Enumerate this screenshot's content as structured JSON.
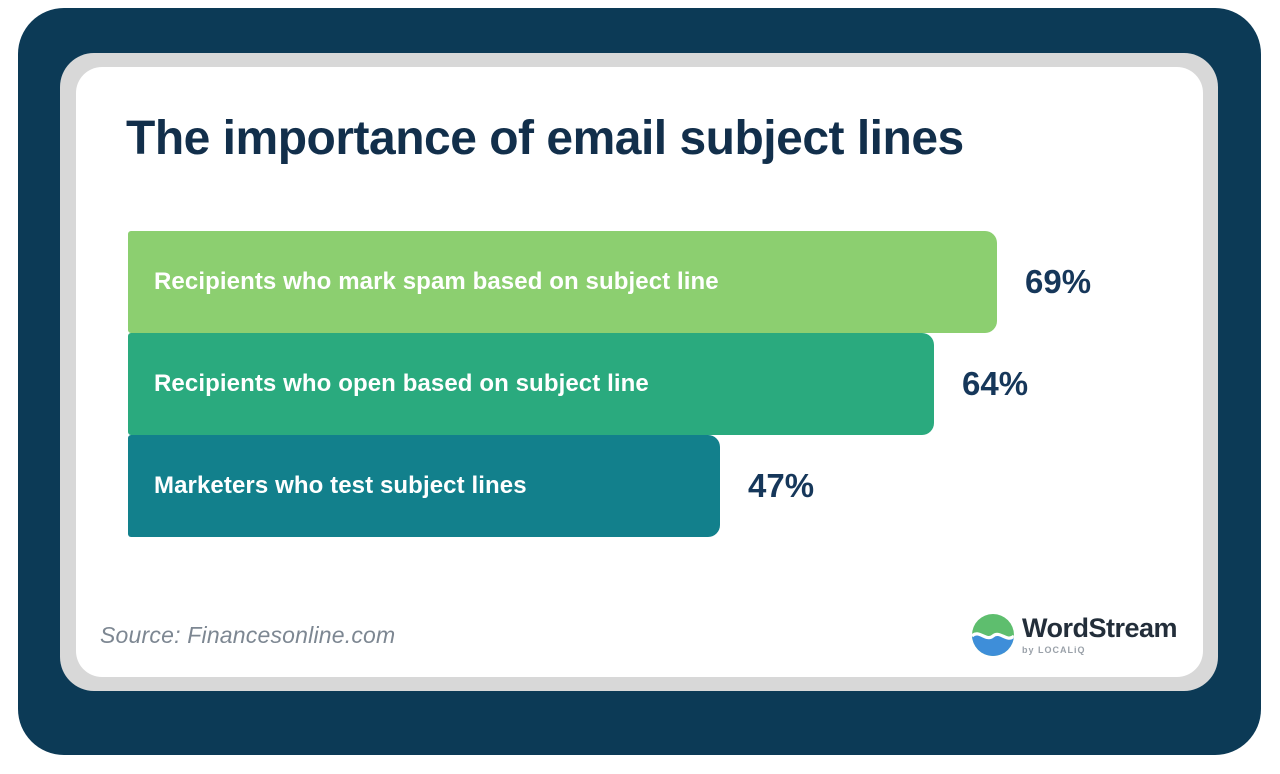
{
  "page": {
    "background": "#FFFFFF"
  },
  "frame": {
    "outer_color": "#0C3A56",
    "inner_color": "#D8D8D8",
    "card_color": "#FFFFFF"
  },
  "chart_data": {
    "type": "bar",
    "orientation": "horizontal",
    "title": "The importance of email subject lines",
    "categories": [
      "Recipients who mark spam based on subject line",
      "Recipients who open based on subject line",
      "Marketers who test subject lines"
    ],
    "values": [
      69,
      64,
      47
    ],
    "value_labels": [
      "69%",
      "64%",
      "47%"
    ],
    "bar_colors": [
      "#8CCF70",
      "#2AAA7E",
      "#12808C"
    ],
    "label_color": "#FFFFFF",
    "value_color": "#16375A",
    "title_color": "#122F4B",
    "axis": "none",
    "grid": "off",
    "legend": "none",
    "scale": {
      "min": 0,
      "max_value_shown": 69
    },
    "value_label_position": "right-of-bar"
  },
  "footer": {
    "source": "Source: Financesonline.com",
    "source_color": "#7D8792",
    "logo": {
      "brand": "WordStream",
      "byline": "by LOCALiQ",
      "brand_color": "#232E3A",
      "globe_green": "#5EBE6E",
      "globe_blue": "#3E8ED9"
    }
  }
}
